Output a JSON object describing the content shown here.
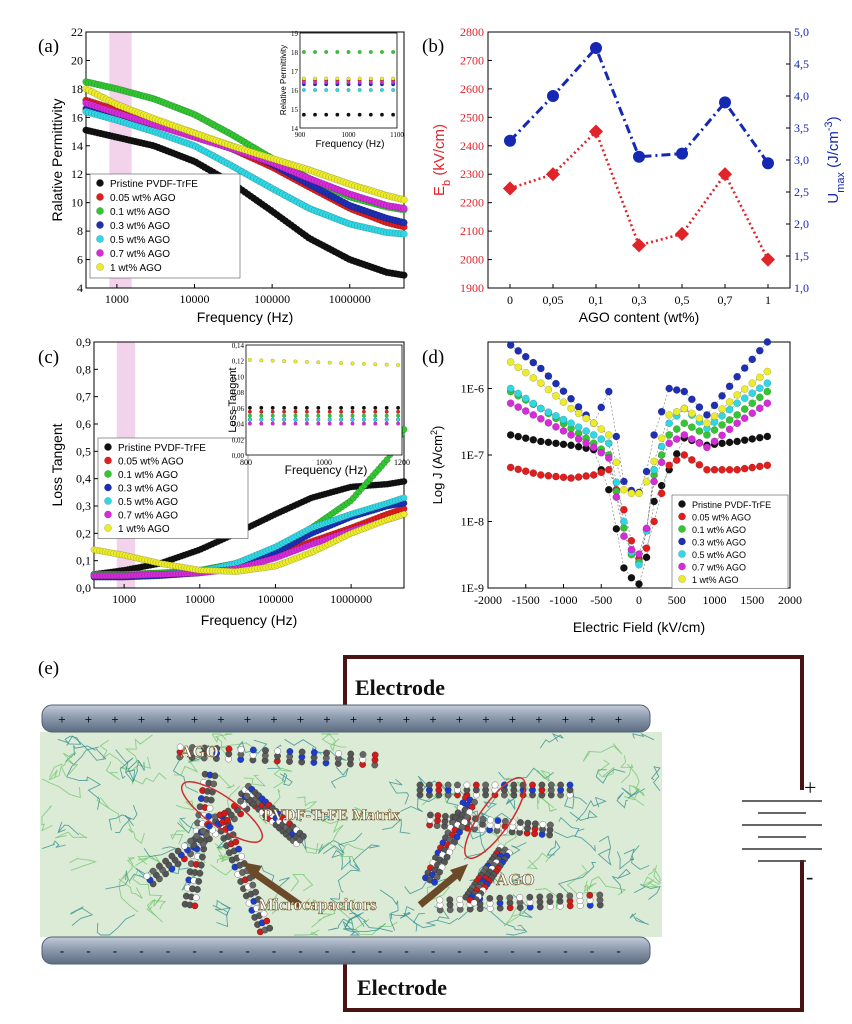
{
  "panels": {
    "a": {
      "label": "(a)"
    },
    "b": {
      "label": "(b)"
    },
    "c": {
      "label": "(c)"
    },
    "d": {
      "label": "(d)"
    },
    "e": {
      "label": "(e)"
    }
  },
  "colors": {
    "series": [
      "#111111",
      "#e11d1d",
      "#33c633",
      "#1f2fb4",
      "#2fd8e4",
      "#d62bd9",
      "#ecec2a"
    ],
    "eb": "#e0242a",
    "umax": "#1428b4",
    "highlight": "#f0c8e6",
    "circuit": "#4a1414"
  },
  "chart_data": [
    {
      "id": "a",
      "type": "scatter",
      "xlabel": "Frequency (Hz)",
      "ylabel": "Ralative Permittivity",
      "xscale": "log",
      "xlim": [
        400,
        5000000
      ],
      "ylim": [
        4,
        22
      ],
      "yticks": [
        4,
        6,
        8,
        10,
        12,
        14,
        16,
        18,
        20,
        22
      ],
      "xticks": [
        1000,
        10000,
        100000,
        1000000
      ],
      "xticklabels": [
        "1000",
        "10000",
        "100000",
        "1000000"
      ],
      "legend_position": "bottom-left",
      "x": [
        400,
        1000,
        3000,
        10000,
        30000,
        100000,
        300000,
        1000000,
        3000000,
        5000000
      ],
      "series": [
        {
          "name": "Pristine PVDF-TrFE",
          "values": [
            15.1,
            14.6,
            14.0,
            12.9,
            11.4,
            9.4,
            7.5,
            6.0,
            5.1,
            4.9
          ]
        },
        {
          "name": "0.05 wt% AGO",
          "values": [
            17.2,
            16.5,
            15.8,
            14.9,
            13.8,
            12.5,
            11.1,
            9.6,
            8.6,
            8.3
          ]
        },
        {
          "name": "0.1 wt% AGO",
          "values": [
            18.5,
            18.0,
            17.3,
            16.2,
            14.8,
            13.1,
            11.7,
            10.4,
            9.7,
            9.5
          ]
        },
        {
          "name": "0.3 wt% AGO",
          "values": [
            16.6,
            16.1,
            15.5,
            14.8,
            14.0,
            12.7,
            11.3,
            9.8,
            8.9,
            8.6
          ]
        },
        {
          "name": "0.5 wt% AGO",
          "values": [
            16.4,
            15.8,
            15.0,
            14.0,
            12.6,
            11.0,
            9.6,
            8.5,
            7.9,
            7.8
          ]
        },
        {
          "name": "0.7 wt% AGO",
          "values": [
            17.0,
            16.3,
            15.5,
            14.6,
            13.8,
            12.8,
            11.7,
            10.6,
            9.8,
            9.6
          ]
        },
        {
          "name": "1 wt% AGO",
          "values": [
            18.0,
            16.9,
            15.9,
            14.9,
            14.0,
            13.1,
            12.3,
            11.3,
            10.5,
            10.2
          ]
        }
      ],
      "inset": {
        "xlabel": "Frequency (Hz)",
        "ylabel": "Relative Permittivity",
        "xlim": [
          900,
          1100
        ],
        "ylim": [
          14,
          19
        ],
        "xticks": [
          900,
          1000,
          1100
        ],
        "xticklabels": [
          "900",
          "1000",
          "1100"
        ],
        "yticks": [
          14,
          15,
          16,
          17,
          18,
          19
        ],
        "values": [
          14.7,
          16.5,
          18.0,
          16.3,
          16.0,
          16.4,
          16.6
        ]
      }
    },
    {
      "id": "b",
      "type": "line",
      "xlabel": "AGO content (wt%)",
      "ylabel_left": "E",
      "ylabel_left_sub": "b",
      "ylabel_left_unit": " (kV/cm)",
      "ylabel_right": "U",
      "ylabel_right_sub": "max",
      "ylabel_right_unit": " (J/cm",
      "ylabel_right_sup": "-3",
      "ylabel_right_end": ")",
      "categories": [
        "0",
        "0,05",
        "0,1",
        "0,3",
        "0,5",
        "0,7",
        "1"
      ],
      "ylim_left": [
        1900,
        2800
      ],
      "yticks_left": [
        "1900",
        "2000",
        "2100",
        "2200",
        "2300",
        "2400",
        "2500",
        "2600",
        "2700",
        "2800"
      ],
      "ylim_right": [
        1.0,
        5.0
      ],
      "yticks_right": [
        "1,0",
        "1,5",
        "2,0",
        "2,5",
        "3,0",
        "3,5",
        "4,0",
        "4,5",
        "5,0"
      ],
      "series": [
        {
          "axis": "left",
          "values": [
            2250,
            2300,
            2450,
            2050,
            2090,
            2300,
            2000
          ]
        },
        {
          "axis": "right",
          "values": [
            3.3,
            4.0,
            4.75,
            3.05,
            3.1,
            3.9,
            2.95
          ]
        }
      ]
    },
    {
      "id": "c",
      "type": "scatter",
      "xlabel": "Frequency (Hz)",
      "ylabel": "Loss Tangent",
      "xscale": "log",
      "xlim": [
        400,
        5000000
      ],
      "ylim": [
        0.0,
        0.9
      ],
      "yticks": [
        "0,0",
        "0,1",
        "0,2",
        "0,3",
        "0,4",
        "0,5",
        "0,6",
        "0,7",
        "0,8",
        "0,9"
      ],
      "xticks": [
        1000,
        10000,
        100000,
        1000000
      ],
      "xticklabels": [
        "1000",
        "10000",
        "100000",
        "1000000"
      ],
      "legend_position": "bottom-left",
      "x": [
        400,
        1000,
        3000,
        10000,
        30000,
        100000,
        300000,
        1000000,
        3000000,
        5000000
      ],
      "series": [
        {
          "name": "Pristine PVDF-TrFE",
          "values": [
            0.05,
            0.065,
            0.09,
            0.14,
            0.2,
            0.27,
            0.33,
            0.37,
            0.38,
            0.39
          ]
        },
        {
          "name": "0.05 wt% AGO",
          "values": [
            0.05,
            0.05,
            0.055,
            0.06,
            0.08,
            0.12,
            0.17,
            0.22,
            0.27,
            0.29
          ]
        },
        {
          "name": "0.1 wt% AGO",
          "values": [
            0.05,
            0.05,
            0.055,
            0.065,
            0.09,
            0.14,
            0.22,
            0.32,
            0.47,
            0.58
          ]
        },
        {
          "name": "0.3 wt% AGO",
          "values": [
            0.04,
            0.04,
            0.045,
            0.055,
            0.08,
            0.13,
            0.2,
            0.26,
            0.3,
            0.31
          ]
        },
        {
          "name": "0.5 wt% AGO",
          "values": [
            0.045,
            0.045,
            0.05,
            0.06,
            0.09,
            0.15,
            0.22,
            0.27,
            0.31,
            0.33
          ]
        },
        {
          "name": "0.7 wt% AGO",
          "values": [
            0.045,
            0.045,
            0.05,
            0.055,
            0.07,
            0.11,
            0.16,
            0.21,
            0.25,
            0.27
          ]
        },
        {
          "name": "1 wt% AGO",
          "values": [
            0.14,
            0.12,
            0.09,
            0.065,
            0.06,
            0.08,
            0.13,
            0.2,
            0.25,
            0.27
          ]
        }
      ],
      "inset": {
        "xlabel": "Frequency (Hz)",
        "ylabel": "Loss Tangent",
        "xlim": [
          800,
          1200
        ],
        "ylim": [
          0.0,
          0.14
        ],
        "xticks": [
          800,
          1000,
          1200
        ],
        "xticklabels": [
          "800",
          "1000",
          "1200"
        ],
        "yticks": [
          "0,00",
          "0,02",
          "0,04",
          "0,06",
          "0,08",
          "0,10",
          "0,12",
          "0,14"
        ],
        "values": [
          0.06,
          0.055,
          0.05,
          0.045,
          0.045,
          0.04,
          0.115
        ]
      }
    },
    {
      "id": "d",
      "type": "scatter",
      "xlabel": "Electric Field (kV/cm)",
      "ylabel": "Log J (A/cm",
      "ylabel_sup": "2",
      "ylabel_end": ")",
      "yscale": "log",
      "xlim": [
        -2000,
        2000
      ],
      "xticks": [
        "-2000",
        "-1500",
        "-1000",
        "-500",
        "0",
        "500",
        "1000",
        "1500",
        "2000"
      ],
      "ylim": [
        1e-09,
        5e-06
      ],
      "yticks": [
        "1E-9",
        "1E-8",
        "1E-7",
        "1E-6"
      ],
      "legend_position": "bottom-right",
      "x": [
        -1700,
        -1300,
        -900,
        -600,
        -400,
        -200,
        -50,
        50,
        200,
        400,
        600,
        900,
        1300,
        1700
      ],
      "series": [
        {
          "name": "Pristine PVDF-TrFE",
          "values": [
            2e-07,
            1.6e-07,
            1.4e-07,
            1.2e-07,
            3e-08,
            2e-09,
            1.2e-09,
            1.1e-09,
            2e-08,
            6e-08,
            1.8e-07,
            1.4e-07,
            1.6e-07,
            1.9e-07
          ]
        },
        {
          "name": "0.05 wt% AGO",
          "values": [
            6.5e-08,
            5e-08,
            4.5e-08,
            5e-08,
            6e-08,
            1.5e-08,
            3e-09,
            2.5e-09,
            1e-08,
            7e-08,
            1e-07,
            6e-08,
            6e-08,
            7e-08
          ]
        },
        {
          "name": "0.1 wt% AGO",
          "values": [
            9e-07,
            5e-07,
            2.5e-07,
            1.5e-07,
            1e-07,
            8e-09,
            2e-09,
            3e-09,
            5e-08,
            2e-07,
            3e-07,
            2e-07,
            4e-07,
            9e-07
          ]
        },
        {
          "name": "0.3 wt% AGO",
          "values": [
            4.5e-06,
            2e-06,
            7e-07,
            3e-07,
            9e-07,
            4e-08,
            2.5e-08,
            3e-08,
            2e-07,
            1e-06,
            9e-07,
            4e-07,
            1.5e-06,
            5e-06
          ]
        },
        {
          "name": "0.5 wt% AGO",
          "values": [
            1e-06,
            5e-07,
            3e-07,
            2e-07,
            1.5e-07,
            1e-08,
            2e-09,
            2.5e-09,
            6e-08,
            3e-07,
            5e-07,
            2.5e-07,
            6e-07,
            1.2e-06
          ]
        },
        {
          "name": "0.7 wt% AGO",
          "values": [
            6e-07,
            3.5e-07,
            2e-07,
            1.3e-07,
            9e-08,
            6e-09,
            3e-09,
            3.5e-09,
            4e-08,
            1.5e-07,
            2e-07,
            1.3e-07,
            3e-07,
            6e-07
          ]
        },
        {
          "name": "1 wt% AGO",
          "values": [
            2.5e-06,
            1.2e-06,
            5e-07,
            3e-07,
            2e-07,
            3e-08,
            2.5e-08,
            2.8e-08,
            8e-08,
            4e-07,
            5e-07,
            3e-07,
            8e-07,
            1.8e-06
          ]
        }
      ]
    }
  ],
  "diagram": {
    "top_electrode_label": "Electrode",
    "bottom_electrode_label": "Electrode",
    "plus_sign": "+",
    "minus_sign": "-",
    "battery_plus": "+",
    "battery_minus": "-",
    "labels": [
      "AGO",
      "PVDF-TrFE Matrix",
      "Microcapacitors",
      "AGO"
    ]
  }
}
